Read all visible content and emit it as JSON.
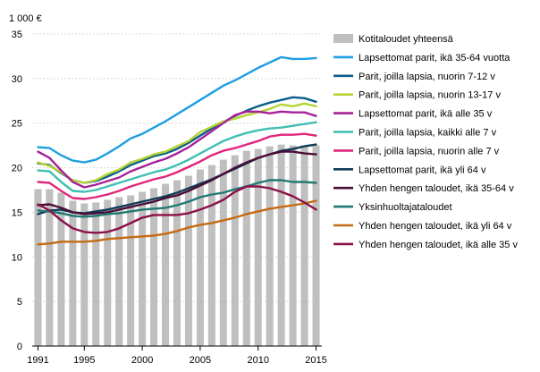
{
  "chart_data": {
    "type": "bar",
    "title": "",
    "unit_label": "1 000 €",
    "xlabel": "",
    "ylabel": "",
    "ylim": [
      0,
      35
    ],
    "yticks": [
      0,
      5,
      10,
      15,
      20,
      25,
      30,
      35
    ],
    "x": [
      1991,
      1992,
      1993,
      1994,
      1995,
      1996,
      1997,
      1998,
      1999,
      2000,
      2001,
      2002,
      2003,
      2004,
      2005,
      2006,
      2007,
      2008,
      2009,
      2010,
      2011,
      2012,
      2013,
      2014,
      2015
    ],
    "xticks": [
      1991,
      1995,
      2000,
      2005,
      2010,
      2015
    ],
    "grid": true,
    "legend_position": "right",
    "bars": {
      "name": "Kotitaloudet yhteensä",
      "color": "#bfbfbf",
      "values": [
        17.6,
        17.6,
        17.2,
        16.3,
        16.0,
        16.1,
        16.4,
        16.7,
        16.9,
        17.3,
        17.7,
        18.2,
        18.6,
        19.1,
        19.8,
        20.3,
        20.9,
        21.4,
        21.9,
        22.1,
        22.4,
        22.6,
        22.5,
        22.5,
        22.5
      ]
    },
    "series": [
      {
        "name": "Lapsettomat parit, ikä 35-64 vuotta",
        "color": "#1e9fe3",
        "values": [
          22.3,
          22.2,
          21.4,
          20.8,
          20.6,
          20.9,
          21.6,
          22.4,
          23.3,
          23.8,
          24.5,
          25.2,
          26.0,
          26.8,
          27.6,
          28.4,
          29.2,
          29.8,
          30.5,
          31.2,
          31.8,
          32.4,
          32.2,
          32.2,
          32.3
        ]
      },
      {
        "name": "Parit, joilla lapsia, nuorin 7-12 v",
        "color": "#0b5e8a",
        "values": [
          20.5,
          20.3,
          19.4,
          18.6,
          18.3,
          18.5,
          19.0,
          19.6,
          20.3,
          20.8,
          21.3,
          21.6,
          22.1,
          22.8,
          23.6,
          24.4,
          25.1,
          25.8,
          26.4,
          26.9,
          27.3,
          27.6,
          27.9,
          27.8,
          27.4
        ]
      },
      {
        "name": "Parit, joilla lapsia, nuorin 13-17 v",
        "color": "#b5d334",
        "values": [
          20.6,
          20.2,
          19.5,
          18.6,
          18.3,
          18.6,
          19.3,
          19.8,
          20.6,
          21.0,
          21.5,
          21.8,
          22.4,
          23.0,
          24.0,
          24.6,
          25.2,
          25.5,
          25.9,
          26.2,
          26.6,
          27.1,
          26.9,
          27.2,
          26.9
        ]
      },
      {
        "name": "Lapsettomat parit, ikä alle 35 v",
        "color": "#a6219a",
        "values": [
          21.8,
          21.1,
          19.7,
          18.4,
          17.8,
          18.1,
          18.5,
          18.9,
          19.6,
          20.1,
          20.6,
          21.0,
          21.6,
          22.3,
          23.2,
          24.1,
          25.0,
          25.9,
          26.3,
          26.3,
          26.1,
          26.3,
          26.2,
          26.2,
          25.8
        ]
      },
      {
        "name": "Parit, joilla lapsia, kaikki alle 7 v",
        "color": "#3ebfb2",
        "values": [
          19.7,
          19.6,
          18.4,
          17.4,
          17.3,
          17.5,
          17.9,
          18.3,
          18.7,
          19.1,
          19.5,
          19.8,
          20.3,
          20.9,
          21.6,
          22.3,
          23.0,
          23.5,
          23.9,
          24.2,
          24.4,
          24.5,
          24.7,
          24.9,
          25.1
        ]
      },
      {
        "name": "Parit, joilla lapsia, nuorin alle 7 v",
        "color": "#e0267a",
        "values": [
          18.4,
          18.3,
          17.4,
          16.6,
          16.5,
          16.7,
          17.0,
          17.4,
          17.9,
          18.3,
          18.7,
          19.0,
          19.5,
          20.1,
          20.7,
          21.4,
          21.9,
          22.2,
          22.6,
          23.0,
          23.5,
          23.7,
          23.7,
          23.8,
          23.6
        ]
      },
      {
        "name": "Lapsettomat parit, ikä yli 64 v",
        "color": "#0e3b56",
        "values": [
          14.8,
          15.2,
          15.3,
          15.0,
          14.9,
          15.1,
          15.3,
          15.6,
          15.9,
          16.2,
          16.5,
          16.8,
          17.2,
          17.7,
          18.2,
          18.7,
          19.3,
          19.9,
          20.5,
          21.1,
          21.5,
          21.9,
          22.1,
          22.4,
          22.6
        ]
      },
      {
        "name": "Yhden hengen taloudet, ikä 35-64 v",
        "color": "#4a0d36",
        "values": [
          15.8,
          15.9,
          15.5,
          15.0,
          14.8,
          14.9,
          15.0,
          15.3,
          15.6,
          15.9,
          16.2,
          16.6,
          16.9,
          17.4,
          18.0,
          18.6,
          19.3,
          20.0,
          20.6,
          21.1,
          21.5,
          21.8,
          21.8,
          21.6,
          21.5
        ]
      },
      {
        "name": "Yksinhuoltajataloudet",
        "color": "#1f7a72",
        "values": [
          15.2,
          15.1,
          14.9,
          14.6,
          14.5,
          14.6,
          14.8,
          14.9,
          15.1,
          15.3,
          15.4,
          15.5,
          15.8,
          16.2,
          16.7,
          17.0,
          17.2,
          17.6,
          17.9,
          18.3,
          18.6,
          18.6,
          18.4,
          18.4,
          18.3
        ]
      },
      {
        "name": "Yhden hengen taloudet, ikä yli 64 v",
        "color": "#c56a12",
        "values": [
          11.4,
          11.5,
          11.7,
          11.7,
          11.7,
          11.8,
          12.0,
          12.1,
          12.2,
          12.3,
          12.4,
          12.6,
          12.9,
          13.3,
          13.6,
          13.8,
          14.1,
          14.4,
          14.8,
          15.1,
          15.4,
          15.6,
          15.8,
          16.0,
          16.3
        ]
      },
      {
        "name": "Yhden hengen taloudet, ikä alle 35 v",
        "color": "#8c1048",
        "values": [
          15.9,
          15.2,
          14.1,
          13.2,
          12.8,
          12.7,
          12.8,
          13.2,
          13.8,
          14.4,
          14.7,
          14.7,
          14.7,
          14.9,
          15.3,
          15.8,
          16.4,
          17.3,
          17.9,
          17.9,
          17.7,
          17.3,
          16.8,
          16.1,
          15.3
        ]
      }
    ]
  }
}
